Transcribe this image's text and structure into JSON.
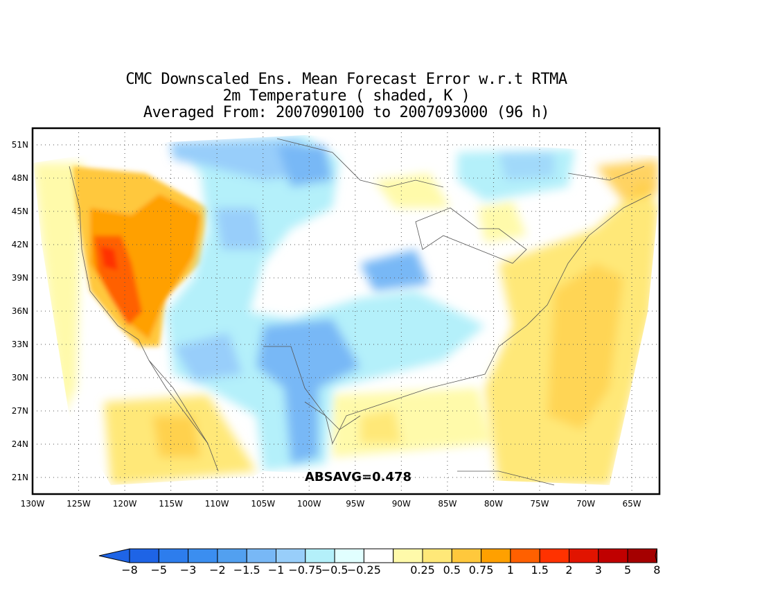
{
  "title": {
    "line1": "CMC Downscaled Ens. Mean Forecast Error w.r.t RTMA",
    "line2": "2m Temperature ( shaded, K )",
    "line3": "Averaged From: 2007090100 to 2007093000 (96 h)"
  },
  "map": {
    "lon_range": [
      -130,
      -62
    ],
    "lat_range": [
      19.5,
      52.5
    ],
    "lon_ticks": [
      "130W",
      "125W",
      "120W",
      "115W",
      "110W",
      "105W",
      "100W",
      "95W",
      "90W",
      "85W",
      "80W",
      "75W",
      "70W",
      "65W"
    ],
    "lat_ticks": [
      "21N",
      "24N",
      "27N",
      "30N",
      "33N",
      "36N",
      "39N",
      "42N",
      "45N",
      "48N",
      "51N"
    ],
    "grid": true,
    "stat_label": "ABSAVG=0.478"
  },
  "colorbar": {
    "labels": [
      "−8",
      "−5",
      "−3",
      "−2",
      "−1.5",
      "−1",
      "−0.75",
      "−0.5",
      "−0.25",
      "0.25",
      "0.5",
      "0.75",
      "1",
      "1.5",
      "2",
      "3",
      "5",
      "8"
    ],
    "colors": [
      "#1e64e6",
      "#2d7ded",
      "#3b8ef0",
      "#52a0f0",
      "#78b8f6",
      "#98cefa",
      "#b4f0fa",
      "#e1ffff",
      "#ffffff",
      "#fffaaa",
      "#ffe878",
      "#ffc83c",
      "#ffa000",
      "#ff6000",
      "#ff3200",
      "#e11400",
      "#c00000",
      "#a50000"
    ]
  },
  "regions": [
    {
      "kind": "west-coast warm error",
      "level": "1 to 2 K",
      "color": "#ffa000"
    },
    {
      "kind": "central US cold error",
      "level": "-1 to -1.5 K",
      "color": "#78b8f6"
    },
    {
      "kind": "east / Atlantic warm error",
      "level": "0.25 to 0.75 K",
      "color": "#ffe878"
    }
  ]
}
